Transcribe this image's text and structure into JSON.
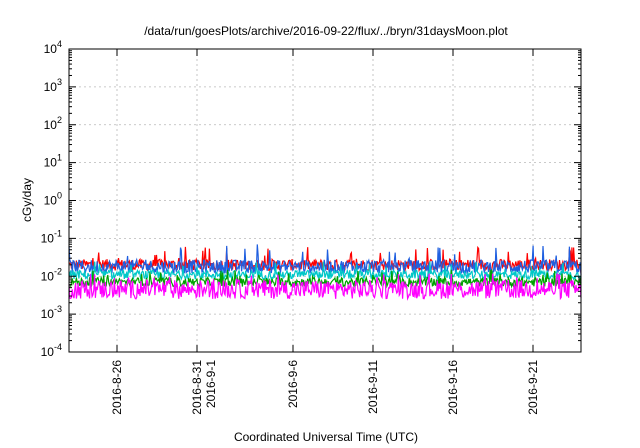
{
  "chart_data": {
    "type": "line",
    "title": "/data/run/goesPlots/archive/2016-09-22/flux/../bryn/31daysMoon.plot",
    "xlabel": "Coordinated Universal Time (UTC)",
    "ylabel": "cGy/day",
    "yscale": "log",
    "ylim": [
      0.0001,
      10000
    ],
    "y_ticks": [
      {
        "value": 0.0001,
        "base": "10",
        "exp": "-4"
      },
      {
        "value": 0.001,
        "base": "10",
        "exp": "-3"
      },
      {
        "value": 0.01,
        "base": "10",
        "exp": "-2"
      },
      {
        "value": 0.1,
        "base": "10",
        "exp": "-1"
      },
      {
        "value": 1,
        "base": "10",
        "exp": "0"
      },
      {
        "value": 10,
        "base": "10",
        "exp": "1"
      },
      {
        "value": 100,
        "base": "10",
        "exp": "2"
      },
      {
        "value": 1000,
        "base": "10",
        "exp": "3"
      },
      {
        "value": 10000,
        "base": "10",
        "exp": "4"
      }
    ],
    "xlim": [
      "2016-08-23T00:00",
      "2016-09-24T00:00"
    ],
    "x_ticks": [
      {
        "date": "2016-08-26",
        "label": [
          "2016-8-26"
        ]
      },
      {
        "date": "2016-08-31",
        "label": [
          "2016-8-31",
          "2016-9-1"
        ]
      },
      {
        "date": "2016-09-06",
        "label": [
          "2016-9-6"
        ]
      },
      {
        "date": "2016-09-11",
        "label": [
          "2016-9-11"
        ]
      },
      {
        "date": "2016-09-16",
        "label": [
          "2016-9-16"
        ]
      },
      {
        "date": "2016-09-21",
        "label": [
          "2016-9-21"
        ]
      }
    ],
    "grid": true,
    "series": [
      {
        "color": "#ff0000",
        "baseline": 0.02,
        "spike_max": 0.06,
        "noise": 0.15
      },
      {
        "color": "#1f5fe0",
        "baseline": 0.018,
        "spike_max": 0.07,
        "noise": 0.18
      },
      {
        "color": "#00c8c8",
        "baseline": 0.011,
        "spike_max": 0.025,
        "noise": 0.12
      },
      {
        "color": "#00a000",
        "baseline": 0.007,
        "spike_max": 0.015,
        "noise": 0.12
      },
      {
        "color": "#ff00ff",
        "baseline": 0.0045,
        "spike_max": 0.012,
        "noise": 0.25
      }
    ]
  }
}
